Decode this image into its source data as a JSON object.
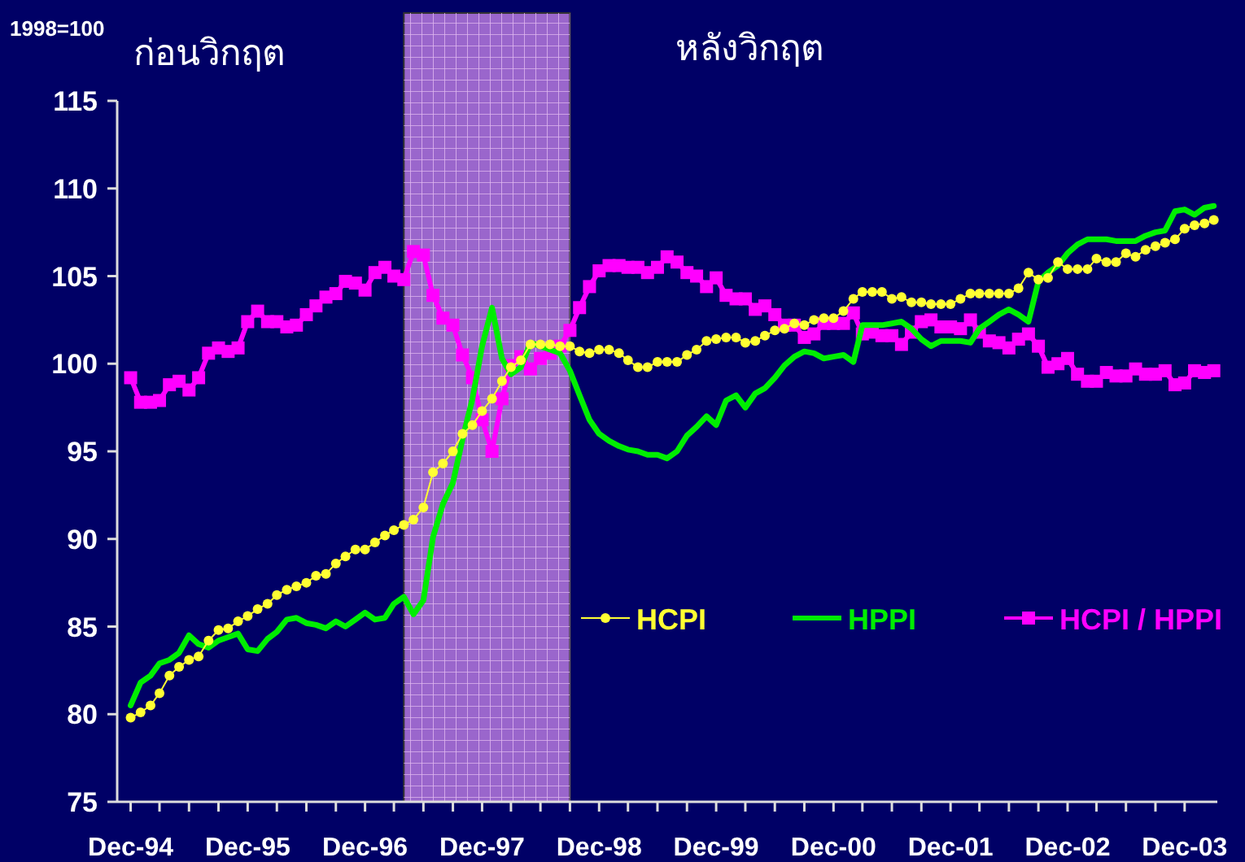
{
  "chart_data": {
    "type": "line",
    "ylabel": "1998=100",
    "annotations": [
      "ก่อนวิกฤต",
      "หลังวิกฤต"
    ],
    "x": [
      "1994-12",
      "1995-01",
      "1995-02",
      "1995-03",
      "1995-04",
      "1995-05",
      "1995-06",
      "1995-07",
      "1995-08",
      "1995-09",
      "1995-10",
      "1995-11",
      "1995-12",
      "1996-01",
      "1996-02",
      "1996-03",
      "1996-04",
      "1996-05",
      "1996-06",
      "1996-07",
      "1996-08",
      "1996-09",
      "1996-10",
      "1996-11",
      "1996-12",
      "1997-01",
      "1997-02",
      "1997-03",
      "1997-04",
      "1997-05",
      "1997-06",
      "1997-07",
      "1997-08",
      "1997-09",
      "1997-10",
      "1997-11",
      "1997-12",
      "1998-01",
      "1998-02",
      "1998-03",
      "1998-04",
      "1998-05",
      "1998-06",
      "1998-07",
      "1998-08",
      "1998-09",
      "1998-10",
      "1998-11",
      "1998-12",
      "1999-01",
      "1999-02",
      "1999-03",
      "1999-04",
      "1999-05",
      "1999-06",
      "1999-07",
      "1999-08",
      "1999-09",
      "1999-10",
      "1999-11",
      "1999-12",
      "2000-01",
      "2000-02",
      "2000-03",
      "2000-04",
      "2000-05",
      "2000-06",
      "2000-07",
      "2000-08",
      "2000-09",
      "2000-10",
      "2000-11",
      "2000-12",
      "2001-01",
      "2001-02",
      "2001-03",
      "2001-04",
      "2001-05",
      "2001-06",
      "2001-07",
      "2001-08",
      "2001-09",
      "2001-10",
      "2001-11",
      "2001-12",
      "2002-01",
      "2002-02",
      "2002-03",
      "2002-04",
      "2002-05",
      "2002-06",
      "2002-07",
      "2002-08",
      "2002-09",
      "2002-10",
      "2002-11",
      "2002-12",
      "2003-01",
      "2003-02",
      "2003-03",
      "2003-04",
      "2003-05",
      "2003-06",
      "2003-07",
      "2003-08",
      "2003-09",
      "2003-10",
      "2003-11",
      "2003-12",
      "2004-01",
      "2004-02",
      "2004-03"
    ],
    "series": [
      {
        "name": "HCPI",
        "color": "#ffff33",
        "marker": "circle",
        "values": [
          79.8,
          80.1,
          80.5,
          81.2,
          82.2,
          82.7,
          83.1,
          83.3,
          84.2,
          84.8,
          84.9,
          85.3,
          85.6,
          86.0,
          86.3,
          86.8,
          87.1,
          87.3,
          87.5,
          87.9,
          88.0,
          88.6,
          89.0,
          89.4,
          89.4,
          89.8,
          90.2,
          90.5,
          90.8,
          91.1,
          91.8,
          93.8,
          94.3,
          95.0,
          96.0,
          96.5,
          97.3,
          98.0,
          99.0,
          99.8,
          100.2,
          101.1,
          101.1,
          101.1,
          101.0,
          101.0,
          100.7,
          100.6,
          100.8,
          100.8,
          100.6,
          100.2,
          99.8,
          99.8,
          100.1,
          100.1,
          100.1,
          100.5,
          100.8,
          101.3,
          101.4,
          101.5,
          101.5,
          101.2,
          101.3,
          101.6,
          101.9,
          102.0,
          102.3,
          102.2,
          102.5,
          102.6,
          102.6,
          103.0,
          103.7,
          104.1,
          104.1,
          104.1,
          103.7,
          103.8,
          103.5,
          103.5,
          103.4,
          103.4,
          103.4,
          103.7,
          104.0,
          104.0,
          104.0,
          104.0,
          104.0,
          104.3,
          105.2,
          104.8,
          104.9,
          105.8,
          105.4,
          105.4,
          105.4,
          106.0,
          105.8,
          105.8,
          106.3,
          106.1,
          106.5,
          106.7,
          106.9,
          107.1,
          107.7,
          107.9,
          108.0,
          108.2
        ]
      },
      {
        "name": "HPPI",
        "color": "#00ee00",
        "marker": "none",
        "values": [
          80.5,
          81.8,
          82.2,
          82.9,
          83.1,
          83.5,
          84.5,
          84.0,
          83.8,
          84.2,
          84.4,
          84.6,
          83.7,
          83.6,
          84.3,
          84.7,
          85.4,
          85.5,
          85.2,
          85.1,
          84.9,
          85.3,
          85.0,
          85.4,
          85.8,
          85.4,
          85.5,
          86.3,
          86.7,
          85.7,
          86.5,
          90.1,
          92.0,
          93.2,
          95.7,
          98.0,
          101.0,
          103.2,
          100.3,
          99.4,
          99.8,
          101.2,
          101.0,
          100.8,
          100.6,
          99.6,
          98.2,
          96.8,
          96.0,
          95.6,
          95.3,
          95.1,
          95.0,
          94.8,
          94.8,
          94.6,
          95.0,
          95.9,
          96.4,
          97.0,
          96.5,
          97.9,
          98.2,
          97.5,
          98.3,
          98.6,
          99.2,
          99.9,
          100.4,
          100.7,
          100.6,
          100.3,
          100.4,
          100.5,
          100.1,
          102.2,
          102.2,
          102.2,
          102.3,
          102.4,
          102.0,
          101.4,
          101.0,
          101.3,
          101.3,
          101.3,
          101.2,
          102.0,
          102.4,
          102.8,
          103.1,
          102.8,
          102.4,
          104.7,
          105.2,
          105.6,
          106.3,
          106.8,
          107.1,
          107.1,
          107.1,
          107.0,
          107.0,
          107.0,
          107.3,
          107.5,
          107.6,
          108.7,
          108.8,
          108.5,
          108.9,
          109.0
        ]
      },
      {
        "name": "HCPI / HPPI",
        "color": "#ff00ff",
        "marker": "square",
        "values": [
          99.2,
          97.8,
          97.8,
          97.9,
          98.8,
          99.0,
          98.5,
          99.2,
          100.6,
          100.9,
          100.7,
          100.9,
          102.4,
          103.0,
          102.4,
          102.4,
          102.1,
          102.2,
          102.8,
          103.3,
          103.8,
          104.0,
          104.7,
          104.6,
          104.2,
          105.2,
          105.5,
          105.0,
          104.8,
          106.4,
          106.2,
          103.9,
          102.6,
          102.2,
          100.5,
          99.2,
          96.8,
          95.0,
          98.0,
          99.9,
          100.4,
          99.7,
          100.3,
          100.6,
          101.0,
          101.9,
          103.2,
          104.4,
          105.3,
          105.6,
          105.6,
          105.5,
          105.5,
          105.2,
          105.5,
          106.1,
          105.8,
          105.2,
          105.0,
          104.4,
          104.9,
          103.9,
          103.7,
          103.7,
          103.1,
          103.3,
          102.8,
          102.2,
          102.2,
          101.5,
          101.7,
          102.3,
          102.3,
          102.3,
          102.9,
          101.7,
          101.8,
          101.6,
          101.6,
          101.1,
          101.8,
          102.4,
          102.5,
          102.1,
          102.1,
          102.0,
          102.5,
          101.8,
          101.3,
          101.2,
          100.9,
          101.4,
          101.7,
          101.0,
          99.8,
          100.0,
          100.3,
          99.4,
          99.0,
          99.0,
          99.5,
          99.3,
          99.3,
          99.7,
          99.4,
          99.4,
          99.6,
          98.8,
          98.9,
          99.6,
          99.5,
          99.6
        ]
      }
    ],
    "xlim": [
      "1994-10-20",
      "2004-03-12"
    ],
    "xticks": [
      {
        "value": "1994-12",
        "label": "Dec-94"
      },
      {
        "value": "1995-03",
        "label": null
      },
      {
        "value": "1995-06",
        "label": null
      },
      {
        "value": "1995-09",
        "label": null
      },
      {
        "value": "1995-12",
        "label": "Dec-95"
      },
      {
        "value": "1996-03",
        "label": null
      },
      {
        "value": "1996-06",
        "label": null
      },
      {
        "value": "1996-09",
        "label": null
      },
      {
        "value": "1996-12",
        "label": "Dec-96"
      },
      {
        "value": "1997-03",
        "label": null
      },
      {
        "value": "1997-06",
        "label": null
      },
      {
        "value": "1997-09",
        "label": null
      },
      {
        "value": "1997-12",
        "label": "Dec-97"
      },
      {
        "value": "1998-03",
        "label": null
      },
      {
        "value": "1998-06",
        "label": null
      },
      {
        "value": "1998-09",
        "label": null
      },
      {
        "value": "1998-12",
        "label": "Dec-98"
      },
      {
        "value": "1999-03",
        "label": null
      },
      {
        "value": "1999-06",
        "label": null
      },
      {
        "value": "1999-09",
        "label": null
      },
      {
        "value": "1999-12",
        "label": "Dec-99"
      },
      {
        "value": "2000-03",
        "label": null
      },
      {
        "value": "2000-06",
        "label": null
      },
      {
        "value": "2000-09",
        "label": null
      },
      {
        "value": "2000-12",
        "label": "Dec-00"
      },
      {
        "value": "2001-03",
        "label": null
      },
      {
        "value": "2001-06",
        "label": null
      },
      {
        "value": "2001-09",
        "label": null
      },
      {
        "value": "2001-12",
        "label": "Dec-01"
      },
      {
        "value": "2002-03",
        "label": null
      },
      {
        "value": "2002-06",
        "label": null
      },
      {
        "value": "2002-09",
        "label": null
      },
      {
        "value": "2002-12",
        "label": "Dec-02"
      },
      {
        "value": "2003-03",
        "label": null
      },
      {
        "value": "2003-06",
        "label": null
      },
      {
        "value": "2003-09",
        "label": null
      },
      {
        "value": "2003-12",
        "label": "Dec-03"
      }
    ],
    "ylim": [
      75,
      115
    ],
    "yticks": [
      75,
      80,
      85,
      90,
      95,
      100,
      105,
      110,
      115
    ],
    "bands": [
      {
        "axis": "x",
        "from": "1997-04",
        "to": "1998-09",
        "color": "#9a66cc"
      }
    ],
    "grid": false,
    "legend": "right"
  }
}
